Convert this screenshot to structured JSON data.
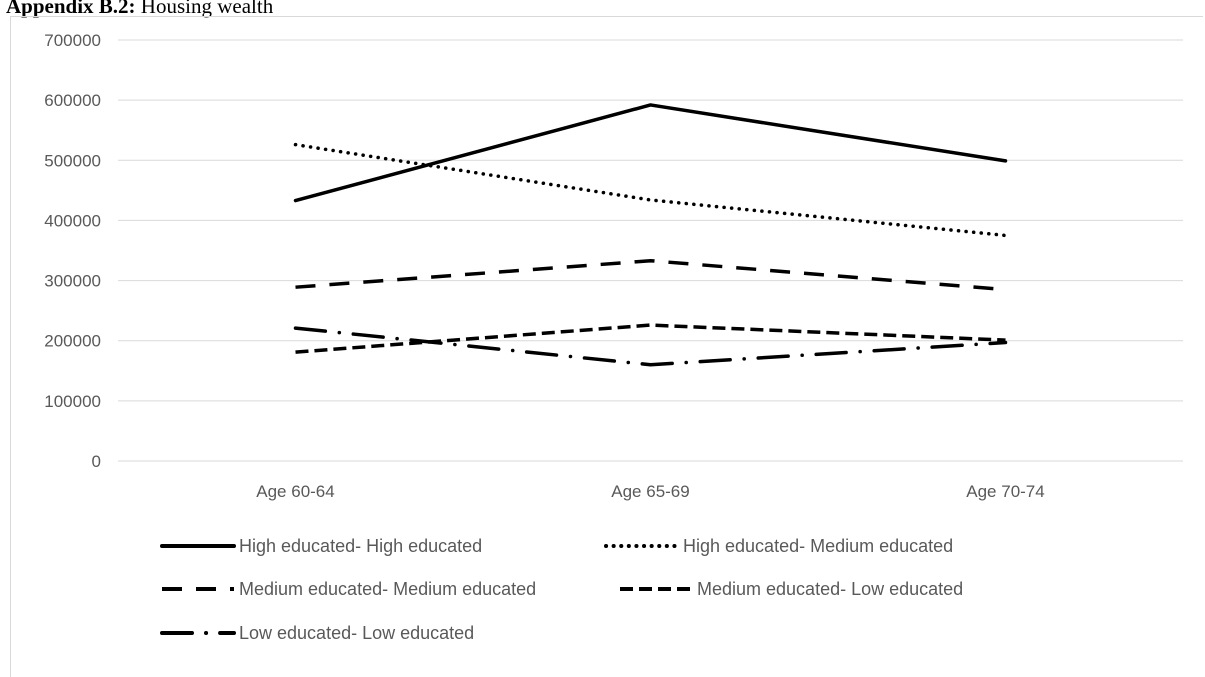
{
  "heading": {
    "bold": "Appendix B.2:",
    "rest": " Housing wealth"
  },
  "chart_data": {
    "type": "line",
    "categories": [
      "Age 60-64",
      "Age 65-69",
      "Age 70-74"
    ],
    "ylim": [
      0,
      700000
    ],
    "yticks": [
      0,
      100000,
      200000,
      300000,
      400000,
      500000,
      600000,
      700000
    ],
    "ytick_labels": [
      "0",
      "100000",
      "200000",
      "300000",
      "400000",
      "500000",
      "600000",
      "700000"
    ],
    "grid": true,
    "legend_position": "bottom",
    "series": [
      {
        "name": "High educated- High educated",
        "style": "solid",
        "values": [
          433000,
          592000,
          499000
        ]
      },
      {
        "name": "High educated- Medium educated",
        "style": "dotted",
        "values": [
          526000,
          434000,
          375000
        ]
      },
      {
        "name": "Medium educated- Medium educated",
        "style": "long-dash",
        "values": [
          289000,
          333000,
          285000
        ]
      },
      {
        "name": "Medium educated- Low educated",
        "style": "dash",
        "values": [
          181000,
          226000,
          201000
        ]
      },
      {
        "name": "Low educated- Low educated",
        "style": "long-dash-dot",
        "values": [
          221000,
          160000,
          197000
        ]
      }
    ],
    "line_color": "#000000",
    "grid_color": "#d9d9d9",
    "text_color": "#595959"
  }
}
